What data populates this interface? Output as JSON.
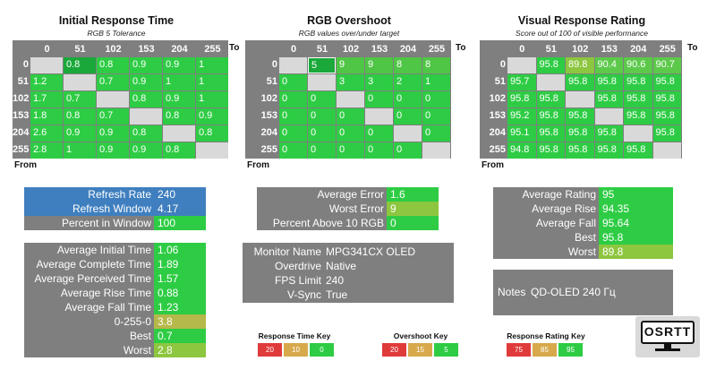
{
  "colors": {
    "green": "#2ecc44",
    "dark_green": "#1aa83a",
    "yellow_green": "#8dc63f",
    "olive": "#b5b84a",
    "red": "#e03b3b",
    "tan": "#d7a94b",
    "gray": "#7f7f7f",
    "empty": "#d9d9d9",
    "blue": "#3f7fbf"
  },
  "axis": {
    "to": "To",
    "from": "From"
  },
  "headers": [
    "0",
    "51",
    "102",
    "153",
    "204",
    "255"
  ],
  "matrices": [
    {
      "title": "Initial Response Time",
      "subtitle": "RGB 5 Tolerance",
      "rows": [
        [
          "",
          "0.8",
          "0.8",
          "0.9",
          "0.9",
          "1"
        ],
        [
          "1.2",
          "",
          "0.7",
          "0.9",
          "1",
          "1"
        ],
        [
          "1.7",
          "0.7",
          "",
          "0.8",
          "0.9",
          "1"
        ],
        [
          "1.8",
          "0.8",
          "0.7",
          "",
          "0.8",
          "0.9"
        ],
        [
          "2.6",
          "0.9",
          "0.9",
          "0.8",
          "",
          "0.8"
        ],
        [
          "2.8",
          "1",
          "0.9",
          "0.9",
          "0.8",
          ""
        ]
      ]
    },
    {
      "title": "RGB Overshoot",
      "subtitle": "RGB values over/under target",
      "rows": [
        [
          "",
          "5",
          "9",
          "9",
          "8",
          "8"
        ],
        [
          "0",
          "",
          "3",
          "3",
          "2",
          "1"
        ],
        [
          "0",
          "0",
          "",
          "0",
          "0",
          "0"
        ],
        [
          "0",
          "0",
          "0",
          "",
          "0",
          "0"
        ],
        [
          "0",
          "0",
          "0",
          "0",
          "",
          "0"
        ],
        [
          "0",
          "0",
          "0",
          "0",
          "0",
          ""
        ]
      ]
    },
    {
      "title": "Visual Response Rating",
      "subtitle": "Score out of 100 of visible performance",
      "rows": [
        [
          "",
          "95.8",
          "89.8",
          "90.4",
          "90.6",
          "90.7"
        ],
        [
          "95.7",
          "",
          "95.8",
          "95.8",
          "95.8",
          "95.8"
        ],
        [
          "95.8",
          "95.8",
          "",
          "95.8",
          "95.8",
          "95.8"
        ],
        [
          "95.2",
          "95.8",
          "95.8",
          "",
          "95.8",
          "95.8"
        ],
        [
          "95.1",
          "95.8",
          "95.8",
          "95.8",
          "",
          "95.8"
        ],
        [
          "94.8",
          "95.8",
          "95.8",
          "95.8",
          "95.8",
          ""
        ]
      ]
    }
  ],
  "refresh_panel": [
    {
      "label": "Refresh Rate",
      "value": "240"
    },
    {
      "label": "Refresh Window",
      "value": "4.17"
    },
    {
      "label": "Percent in Window",
      "value": "100"
    }
  ],
  "time_panel": [
    {
      "label": "Average Initial Time",
      "value": "1.06"
    },
    {
      "label": "Average Complete Time",
      "value": "1.89"
    },
    {
      "label": "Average Perceived Time",
      "value": "1.57"
    },
    {
      "label": "Average Rise Time",
      "value": "0.88"
    },
    {
      "label": "Average Fall Time",
      "value": "1.23"
    },
    {
      "label": "0-255-0",
      "value": "3.8"
    },
    {
      "label": "Best",
      "value": "0.7"
    },
    {
      "label": "Worst",
      "value": "2.8"
    }
  ],
  "error_panel": [
    {
      "label": "Average Error",
      "value": "1.6"
    },
    {
      "label": "Worst Error",
      "value": "9"
    },
    {
      "label": "Percent Above 10 RGB",
      "value": "0"
    }
  ],
  "monitor_panel": [
    {
      "label": "Monitor Name",
      "value": "MPG341CX OLED"
    },
    {
      "label": "Overdrive",
      "value": "Native"
    },
    {
      "label": "FPS Limit",
      "value": "240"
    },
    {
      "label": "V-Sync",
      "value": "True"
    }
  ],
  "rating_panel": [
    {
      "label": "Average Rating",
      "value": "95"
    },
    {
      "label": "Average Rise",
      "value": "94.35"
    },
    {
      "label": "Average Fall",
      "value": "95.64"
    },
    {
      "label": "Best",
      "value": "95.8"
    },
    {
      "label": "Worst",
      "value": "89.8"
    }
  ],
  "notes_panel": {
    "label": "Notes",
    "value": "QD-OLED 240 Гц"
  },
  "keys": [
    {
      "title": "Response Time Key",
      "values": [
        "20",
        "10",
        "0"
      ]
    },
    {
      "title": "Overshoot Key",
      "values": [
        "20",
        "15",
        "5"
      ]
    },
    {
      "title": "Response Rating Key",
      "values": [
        "75",
        "85",
        "95"
      ]
    }
  ],
  "logo": "OSRTT"
}
